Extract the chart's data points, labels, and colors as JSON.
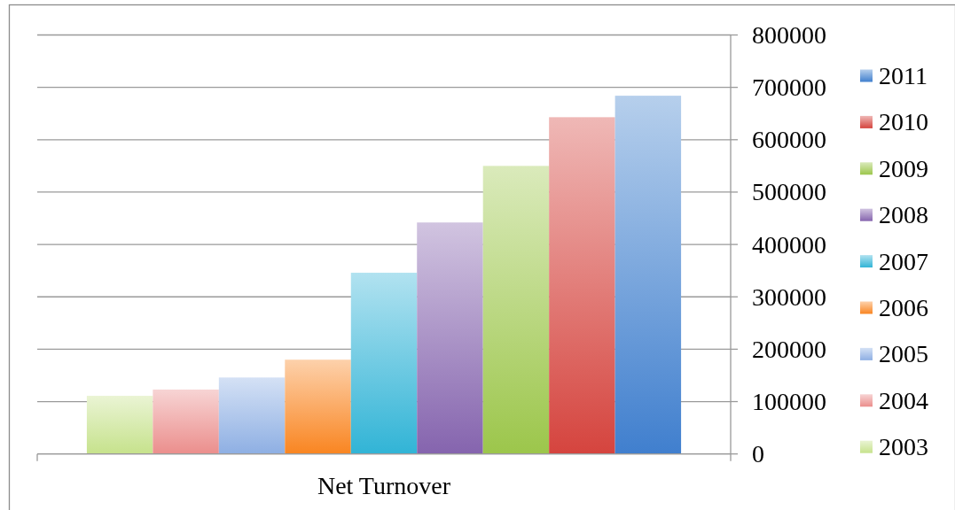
{
  "chart_data": {
    "type": "bar",
    "categories": [
      "Net Turnover"
    ],
    "series": [
      {
        "name": "2003",
        "color": "#d8ebb0",
        "values": [
          111000
        ]
      },
      {
        "name": "2004",
        "color": "#f1b1b0",
        "values": [
          123000
        ]
      },
      {
        "name": "2005",
        "color": "#b1c8ec",
        "values": [
          146000
        ]
      },
      {
        "name": "2006",
        "color": "#fbab66",
        "values": [
          180000
        ]
      },
      {
        "name": "2007",
        "color": "#71cbe3",
        "values": [
          346000
        ]
      },
      {
        "name": "2008",
        "color": "#ab94c7",
        "values": [
          442000
        ]
      },
      {
        "name": "2009",
        "color": "#bbd883",
        "values": [
          550000
        ]
      },
      {
        "name": "2010",
        "color": "#e27e7a",
        "values": [
          643000
        ]
      },
      {
        "name": "2011",
        "color": "#7ba7dd",
        "values": [
          684000
        ]
      }
    ],
    "ylim": [
      0,
      800000
    ],
    "yticks": [
      0,
      100000,
      200000,
      300000,
      400000,
      500000,
      600000,
      700000,
      800000
    ],
    "grid": "y",
    "legend": "right"
  }
}
